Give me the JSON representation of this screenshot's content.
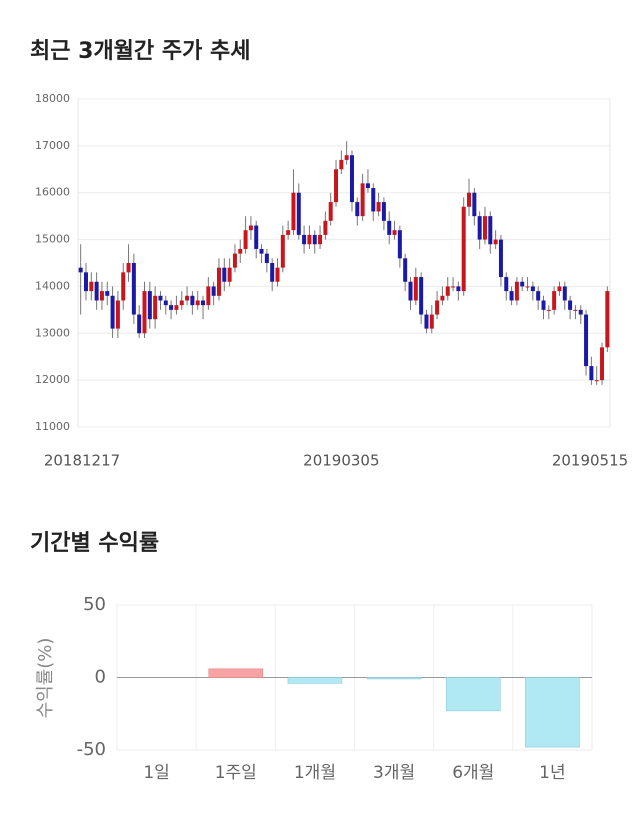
{
  "chart_data": [
    {
      "type": "candlestick",
      "title": "최근 3개월간 주가 추세",
      "x": [
        "20181217",
        null,
        null,
        null,
        null,
        null,
        null,
        null,
        null,
        null,
        null,
        null,
        null,
        null,
        null,
        null,
        null,
        null,
        null,
        null,
        null,
        null,
        null,
        null,
        null,
        null,
        null,
        null,
        null,
        null,
        null,
        null,
        null,
        null,
        null,
        null,
        null,
        null,
        null,
        null,
        null,
        null,
        null,
        null,
        null,
        null,
        null,
        null,
        null,
        "20190305",
        null,
        null,
        null,
        null,
        null,
        null,
        null,
        null,
        null,
        null,
        null,
        null,
        null,
        null,
        null,
        null,
        null,
        null,
        null,
        null,
        null,
        null,
        null,
        null,
        null,
        null,
        null,
        null,
        null,
        null,
        null,
        null,
        null,
        null,
        null,
        null,
        null,
        null,
        null,
        null,
        null,
        null,
        null,
        null,
        null,
        null,
        null,
        null,
        null,
        "20190515"
      ],
      "ohlc": [
        [
          14400,
          14900,
          13400,
          14300
        ],
        [
          14300,
          14500,
          13700,
          13900
        ],
        [
          13900,
          14300,
          13700,
          14100
        ],
        [
          14100,
          14300,
          13500,
          13700
        ],
        [
          13700,
          14100,
          13500,
          13900
        ],
        [
          13900,
          14100,
          13600,
          13800
        ],
        [
          13800,
          14000,
          12900,
          13100
        ],
        [
          13100,
          13900,
          12900,
          13700
        ],
        [
          13700,
          14500,
          13500,
          14300
        ],
        [
          14300,
          14900,
          14100,
          14500
        ],
        [
          14500,
          14700,
          13200,
          13400
        ],
        [
          13400,
          13600,
          12900,
          13000
        ],
        [
          13000,
          14100,
          12900,
          13900
        ],
        [
          13900,
          14100,
          13100,
          13300
        ],
        [
          13300,
          14000,
          13100,
          13800
        ],
        [
          13800,
          13900,
          13500,
          13700
        ],
        [
          13700,
          13800,
          13400,
          13600
        ],
        [
          13600,
          13700,
          13300,
          13500
        ],
        [
          13500,
          13800,
          13400,
          13600
        ],
        [
          13600,
          13900,
          13500,
          13700
        ],
        [
          13700,
          14000,
          13600,
          13800
        ],
        [
          13800,
          13900,
          13400,
          13600
        ],
        [
          13600,
          13900,
          13500,
          13700
        ],
        [
          13700,
          13800,
          13300,
          13600
        ],
        [
          13600,
          14200,
          13500,
          14000
        ],
        [
          14000,
          14100,
          13600,
          13800
        ],
        [
          13800,
          14600,
          13700,
          14400
        ],
        [
          14400,
          14600,
          13900,
          14100
        ],
        [
          14100,
          14600,
          14000,
          14400
        ],
        [
          14400,
          14900,
          14300,
          14700
        ],
        [
          14700,
          15000,
          14500,
          14800
        ],
        [
          14800,
          15500,
          14700,
          15200
        ],
        [
          15200,
          15500,
          15000,
          15300
        ],
        [
          15300,
          15400,
          14600,
          14800
        ],
        [
          14800,
          14900,
          14500,
          14700
        ],
        [
          14700,
          14800,
          14300,
          14500
        ],
        [
          14500,
          14600,
          13900,
          14100
        ],
        [
          14100,
          14600,
          14000,
          14400
        ],
        [
          14400,
          15300,
          14300,
          15100
        ],
        [
          15100,
          15400,
          15000,
          15200
        ],
        [
          15200,
          16500,
          15100,
          16000
        ],
        [
          16000,
          16200,
          15000,
          15100
        ],
        [
          15100,
          15300,
          14700,
          14900
        ],
        [
          14900,
          15300,
          14800,
          15100
        ],
        [
          15100,
          15200,
          14700,
          14900
        ],
        [
          14900,
          15300,
          14800,
          15100
        ],
        [
          15100,
          15600,
          15000,
          15400
        ],
        [
          15400,
          16000,
          15300,
          15800
        ],
        [
          15800,
          16700,
          15700,
          16500
        ],
        [
          16500,
          16900,
          16400,
          16700
        ],
        [
          16700,
          17100,
          16600,
          16800
        ],
        [
          16800,
          16900,
          15600,
          15800
        ],
        [
          15800,
          15900,
          15300,
          15500
        ],
        [
          15500,
          16400,
          15400,
          16200
        ],
        [
          16200,
          16500,
          16000,
          16100
        ],
        [
          16100,
          16200,
          15400,
          15600
        ],
        [
          15600,
          16000,
          15500,
          15800
        ],
        [
          15800,
          15900,
          15200,
          15400
        ],
        [
          15400,
          15600,
          14900,
          15100
        ],
        [
          15100,
          15400,
          15000,
          15200
        ],
        [
          15200,
          15300,
          14400,
          14600
        ],
        [
          14600,
          14700,
          13900,
          14100
        ],
        [
          14100,
          14200,
          13500,
          13700
        ],
        [
          13700,
          14400,
          13600,
          14200
        ],
        [
          14200,
          14300,
          13200,
          13400
        ],
        [
          13400,
          13500,
          13000,
          13100
        ],
        [
          13100,
          13600,
          13000,
          13400
        ],
        [
          13400,
          13900,
          13300,
          13700
        ],
        [
          13700,
          14000,
          13600,
          13800
        ],
        [
          13800,
          14200,
          13700,
          14000
        ],
        [
          14000,
          14200,
          13900,
          14000
        ],
        [
          14000,
          14100,
          13700,
          13900
        ],
        [
          13900,
          15900,
          13800,
          15700
        ],
        [
          15700,
          16300,
          15500,
          16000
        ],
        [
          16000,
          16100,
          15300,
          15500
        ],
        [
          15500,
          15600,
          14800,
          15000
        ],
        [
          15000,
          15700,
          14900,
          15500
        ],
        [
          15500,
          15600,
          14700,
          14900
        ],
        [
          14900,
          15200,
          14800,
          15000
        ],
        [
          15000,
          15100,
          14000,
          14200
        ],
        [
          14200,
          14300,
          13700,
          13900
        ],
        [
          13900,
          14000,
          13600,
          13700
        ],
        [
          13700,
          14200,
          13600,
          14100
        ],
        [
          14100,
          14200,
          13900,
          14000
        ],
        [
          14000,
          14200,
          13900,
          14000
        ],
        [
          14000,
          14100,
          13700,
          13900
        ],
        [
          13900,
          14000,
          13500,
          13700
        ],
        [
          13700,
          13800,
          13300,
          13500
        ],
        [
          13500,
          13600,
          13300,
          13500
        ],
        [
          13500,
          14000,
          13400,
          13900
        ],
        [
          13900,
          14100,
          13800,
          14000
        ],
        [
          14000,
          14100,
          13500,
          13700
        ],
        [
          13700,
          13800,
          13300,
          13500
        ],
        [
          13500,
          13600,
          13300,
          13500
        ],
        [
          13500,
          13600,
          13200,
          13400
        ],
        [
          13400,
          13500,
          12100,
          12300
        ],
        [
          12300,
          12500,
          11900,
          12000
        ],
        [
          12000,
          12300,
          11900,
          12000
        ],
        [
          12000,
          12800,
          11900,
          12700
        ],
        [
          12700,
          14000,
          12600,
          13900
        ]
      ],
      "up_color": "#c8161d",
      "down_color": "#1a1aa6",
      "ylim": [
        11000,
        18000
      ],
      "yticks": [
        11000,
        12000,
        13000,
        14000,
        15000,
        16000,
        17000,
        18000
      ],
      "grid": true
    },
    {
      "type": "bar",
      "title": "기간별 수익률",
      "y_label": "수익률(%)",
      "categories": [
        "1일",
        "1주일",
        "1개월",
        "3개월",
        "6개월",
        "1년"
      ],
      "values": [
        0,
        6,
        -4,
        -1,
        -23,
        -48
      ],
      "positive_color": "#f5a3a3",
      "negative_color": "#b0e8f3",
      "ylim": [
        -50,
        50
      ],
      "yticks": [
        -50,
        0,
        50
      ],
      "grid": true
    }
  ]
}
